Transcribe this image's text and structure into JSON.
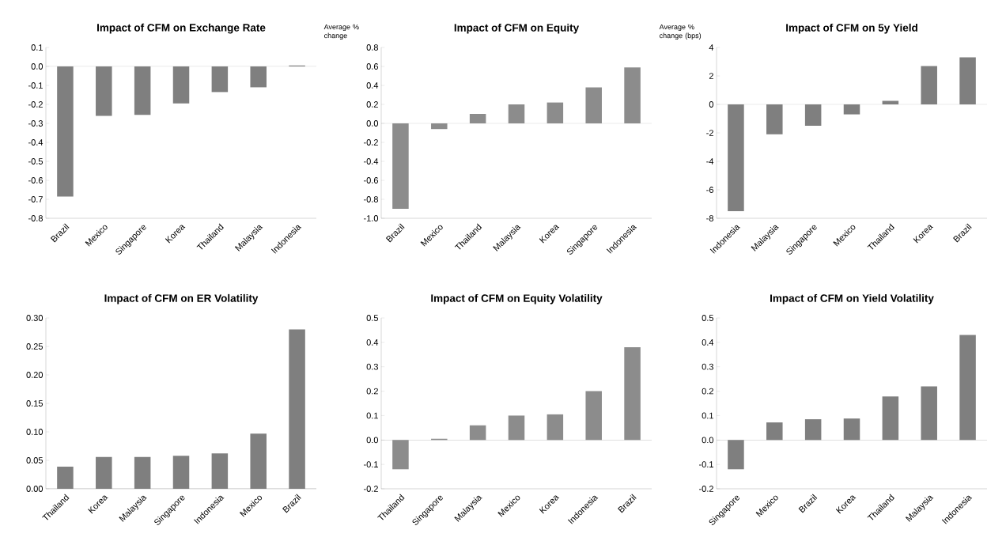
{
  "chart_data": [
    {
      "type": "bar",
      "title": "Impact of CFM on Exchange Rate",
      "categories": [
        "Brazil",
        "Mexico",
        "Singapore",
        "Korea",
        "Thailand",
        "Malaysia",
        "Indonesia"
      ],
      "values": [
        -0.685,
        -0.26,
        -0.255,
        -0.195,
        -0.135,
        -0.11,
        0.005
      ],
      "color": "#7f7f7f",
      "ylim": [
        -0.8,
        0.1
      ],
      "yticks": [
        {
          "value": -0.8,
          "label": "-0.8"
        },
        {
          "value": -0.7,
          "label": "-0.7"
        },
        {
          "value": -0.6,
          "label": "-0.6"
        },
        {
          "value": -0.5,
          "label": "-0.5"
        },
        {
          "value": -0.4,
          "label": "-0.4"
        },
        {
          "value": -0.3,
          "label": "-0.3"
        },
        {
          "value": -0.2,
          "label": "-0.2"
        },
        {
          "value": -0.1,
          "label": "-0.1"
        },
        {
          "value": 0,
          "label": "0.0"
        },
        {
          "value": 0.1,
          "label": "0.1"
        }
      ]
    },
    {
      "type": "bar",
      "title": "Impact of CFM on Equity",
      "ylabel": "Average % change",
      "categories": [
        "Brazil",
        "Mexico",
        "Thailand",
        "Malaysia",
        "Korea",
        "Singapore",
        "Indonesia"
      ],
      "values": [
        -0.9,
        -0.06,
        0.1,
        0.2,
        0.22,
        0.38,
        0.59
      ],
      "color": "#8c8c8c",
      "ylim": [
        -1.0,
        0.8
      ],
      "yticks": [
        {
          "value": -1.0,
          "label": "-1.0"
        },
        {
          "value": -0.8,
          "label": "-0.8"
        },
        {
          "value": -0.6,
          "label": "-0.6"
        },
        {
          "value": -0.4,
          "label": "-0.4"
        },
        {
          "value": -0.2,
          "label": "-0.2"
        },
        {
          "value": 0,
          "label": "0.0"
        },
        {
          "value": 0.2,
          "label": "0.2"
        },
        {
          "value": 0.4,
          "label": "0.4"
        },
        {
          "value": 0.6,
          "label": "0.6"
        },
        {
          "value": 0.8,
          "label": "0.8"
        }
      ]
    },
    {
      "type": "bar",
      "title": "Impact of CFM on 5y Yield",
      "ylabel": "Average % change (bps)",
      "categories": [
        "Indonesia",
        "Malaysia",
        "Singapore",
        "Mexico",
        "Thailand",
        "Korea",
        "Brazil"
      ],
      "values": [
        -7.5,
        -2.1,
        -1.5,
        -0.7,
        0.25,
        2.7,
        3.3
      ],
      "color": "#7f7f7f",
      "ylim": [
        -8,
        4
      ],
      "yticks": [
        -8,
        -6,
        -4,
        -2,
        0,
        2,
        4
      ]
    },
    {
      "type": "bar",
      "title": "Impact of CFM on ER Volatility",
      "categories": [
        "Thailand",
        "Korea",
        "Malaysia",
        "Singapore",
        "Indonesia",
        "Mexico",
        "Brazil"
      ],
      "values": [
        0.039,
        0.056,
        0.056,
        0.058,
        0.062,
        0.097,
        0.28
      ],
      "color": "#7f7f7f",
      "ylim": [
        0,
        0.3
      ],
      "yticks": [
        {
          "value": 0,
          "label": "0.00"
        },
        {
          "value": 0.05,
          "label": "0.05"
        },
        {
          "value": 0.1,
          "label": "0.10"
        },
        {
          "value": 0.15,
          "label": "0.15"
        },
        {
          "value": 0.2,
          "label": "0.20"
        },
        {
          "value": 0.25,
          "label": "0.25"
        },
        {
          "value": 0.3,
          "label": "0.30"
        }
      ]
    },
    {
      "type": "bar",
      "title": "Impact of CFM on Equity Volatility",
      "categories": [
        "Thailand",
        "Singapore",
        "Malaysia",
        "Mexico",
        "Korea",
        "Indonesia",
        "Brazil"
      ],
      "values": [
        -0.12,
        0.005,
        0.06,
        0.1,
        0.105,
        0.2,
        0.38
      ],
      "color": "#8c8c8c",
      "ylim": [
        -0.2,
        0.5
      ],
      "yticks": [
        {
          "value": -0.2,
          "label": "-0.2"
        },
        {
          "value": -0.1,
          "label": "-0.1"
        },
        {
          "value": 0,
          "label": "0.0"
        },
        {
          "value": 0.1,
          "label": "0.1"
        },
        {
          "value": 0.2,
          "label": "0.2"
        },
        {
          "value": 0.3,
          "label": "0.3"
        },
        {
          "value": 0.4,
          "label": "0.4"
        },
        {
          "value": 0.5,
          "label": "0.5"
        }
      ]
    },
    {
      "type": "bar",
      "title": "Impact of CFM on Yield Volatility",
      "categories": [
        "Singapore",
        "Mexico",
        "Brazil",
        "Korea",
        "Thailand",
        "Malaysia",
        "Indonesia"
      ],
      "values": [
        -0.12,
        0.072,
        0.085,
        0.088,
        0.178,
        0.22,
        0.43
      ],
      "color": "#7f7f7f",
      "ylim": [
        -0.2,
        0.5
      ],
      "yticks": [
        {
          "value": -0.2,
          "label": "-0.2"
        },
        {
          "value": -0.1,
          "label": "-0.1"
        },
        {
          "value": 0,
          "label": "0.0"
        },
        {
          "value": 0.1,
          "label": "0.1"
        },
        {
          "value": 0.2,
          "label": "0.2"
        },
        {
          "value": 0.3,
          "label": "0.3"
        },
        {
          "value": 0.4,
          "label": "0.4"
        },
        {
          "value": 0.5,
          "label": "0.5"
        }
      ]
    }
  ]
}
